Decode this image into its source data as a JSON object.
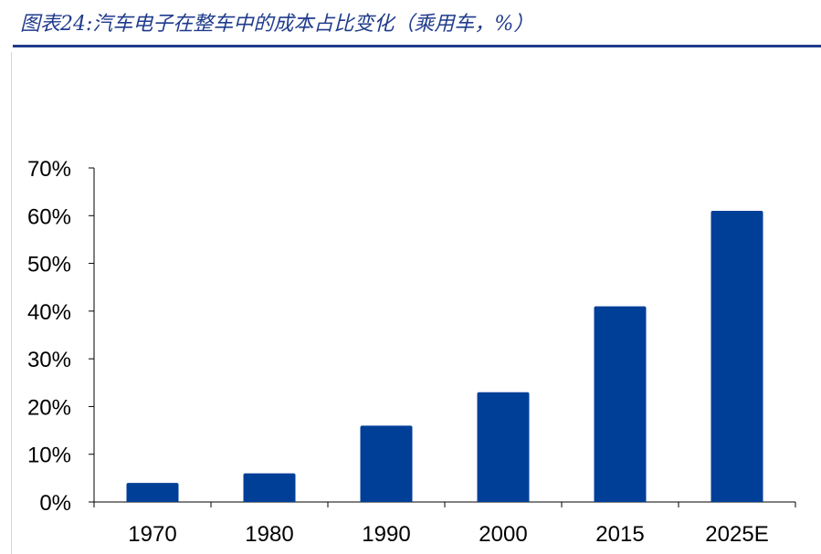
{
  "header": {
    "figure_label": "图表24:",
    "title": "汽车电子在整车中的成本占比变化（乘用车，%）"
  },
  "chart_data": {
    "type": "bar",
    "title": "图表24: 汽车电子在整车中的成本占比变化（乘用车，%）",
    "categories": [
      "1970",
      "1980",
      "1990",
      "2000",
      "2015",
      "2025E"
    ],
    "series": [
      {
        "values": [
          4,
          6,
          16,
          23,
          41,
          61
        ]
      }
    ],
    "yticks": [
      "0%",
      "10%",
      "20%",
      "30%",
      "40%",
      "50%",
      "60%",
      "70%"
    ],
    "ylim": [
      0,
      70
    ],
    "xlabel": "",
    "ylabel": "",
    "grid": false,
    "legend": "none",
    "bar_color": "#003f98",
    "axis_color": "#000000"
  }
}
